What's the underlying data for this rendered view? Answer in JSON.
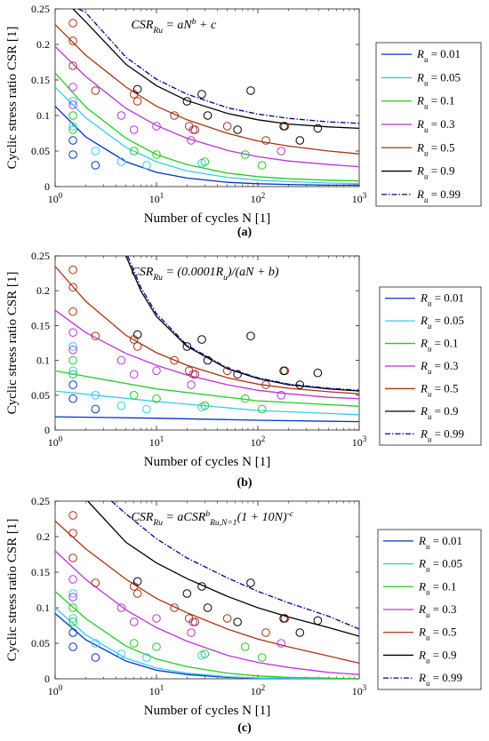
{
  "chart_data": [
    {
      "type": "line",
      "panel_label": "(a)",
      "equation": "CSR_{R_u} = aN^b + c",
      "xlabel": "Number of cycles N [1]",
      "ylabel": "Cyclic stress ratio CSR [1]",
      "xscale": "log",
      "xlim": [
        1,
        1000
      ],
      "ylim": [
        0,
        0.25
      ],
      "xticks": [
        "10^0",
        "10^1",
        "10^2",
        "10^3"
      ],
      "yticks": [
        "0",
        "0.05",
        "0.1",
        "0.15",
        "0.2",
        "0.25"
      ],
      "legend_position": "outside-right",
      "series": [
        {
          "name": "R_u = 0.01",
          "color": "#0033cc",
          "dash": "solid",
          "x": [
            1,
            2,
            5,
            10,
            20,
            50,
            100,
            200,
            500,
            1000
          ],
          "y": [
            0.113,
            0.07,
            0.035,
            0.02,
            0.012,
            0.006,
            0.004,
            0.003,
            0.002,
            0.002
          ]
        },
        {
          "name": "R_u = 0.05",
          "color": "#33ccee",
          "dash": "solid",
          "x": [
            1,
            2,
            5,
            10,
            20,
            50,
            100,
            200,
            500,
            1000
          ],
          "y": [
            0.14,
            0.097,
            0.055,
            0.035,
            0.022,
            0.013,
            0.009,
            0.007,
            0.005,
            0.004
          ]
        },
        {
          "name": "R_u = 0.1",
          "color": "#22cc22",
          "dash": "solid",
          "x": [
            1,
            2,
            5,
            10,
            20,
            50,
            100,
            200,
            500,
            1000
          ],
          "y": [
            0.16,
            0.112,
            0.068,
            0.045,
            0.031,
            0.019,
            0.014,
            0.011,
            0.009,
            0.008
          ]
        },
        {
          "name": "R_u = 0.3",
          "color": "#bb33dd",
          "dash": "solid",
          "x": [
            1,
            2,
            5,
            10,
            20,
            50,
            100,
            200,
            500,
            1000
          ],
          "y": [
            0.197,
            0.155,
            0.11,
            0.086,
            0.068,
            0.051,
            0.042,
            0.036,
            0.031,
            0.028
          ]
        },
        {
          "name": "R_u = 0.5",
          "color": "#aa3311",
          "dash": "solid",
          "x": [
            1,
            2,
            5,
            10,
            20,
            50,
            100,
            200,
            500,
            1000
          ],
          "y": [
            0.228,
            0.185,
            0.14,
            0.113,
            0.094,
            0.075,
            0.064,
            0.057,
            0.05,
            0.046
          ]
        },
        {
          "name": "R_u = 0.9",
          "color": "#000000",
          "dash": "solid",
          "x": [
            1.5,
            2,
            5,
            10,
            20,
            50,
            100,
            200,
            500,
            1000
          ],
          "y": [
            0.25,
            0.232,
            0.172,
            0.142,
            0.121,
            0.103,
            0.094,
            0.088,
            0.084,
            0.082
          ]
        },
        {
          "name": "R_u = 0.99",
          "color": "#000099",
          "dash": "dashdot",
          "x": [
            1.7,
            2,
            5,
            10,
            20,
            50,
            100,
            200,
            500,
            1000
          ],
          "y": [
            0.25,
            0.245,
            0.182,
            0.151,
            0.13,
            0.111,
            0.102,
            0.096,
            0.091,
            0.089
          ]
        }
      ],
      "points": [
        {
          "color": "#0033cc",
          "x": [
            1.5,
            1.5,
            2.5
          ],
          "y": [
            0.045,
            0.065,
            0.03
          ]
        },
        {
          "color": "#33ccee",
          "x": [
            1.5,
            1.5,
            2.5,
            4.5,
            8,
            28
          ],
          "y": [
            0.12,
            0.085,
            0.05,
            0.035,
            0.03,
            0.033
          ]
        },
        {
          "color": "#22cc22",
          "x": [
            1.5,
            1.5,
            6,
            10,
            30,
            75,
            110
          ],
          "y": [
            0.1,
            0.08,
            0.05,
            0.045,
            0.035,
            0.045,
            0.03
          ]
        },
        {
          "color": "#bb33dd",
          "x": [
            1.5,
            1.5,
            4.5,
            6,
            10,
            22,
            23,
            170
          ],
          "y": [
            0.14,
            0.115,
            0.1,
            0.08,
            0.085,
            0.065,
            0.08,
            0.05
          ]
        },
        {
          "color": "#aa3311",
          "x": [
            1.5,
            1.5,
            1.5,
            2.5,
            6,
            6.5,
            15,
            21,
            24,
            50,
            120,
            185
          ],
          "y": [
            0.23,
            0.205,
            0.17,
            0.135,
            0.13,
            0.12,
            0.1,
            0.085,
            0.08,
            0.085,
            0.065,
            0.085
          ]
        },
        {
          "color": "#000000",
          "x": [
            6.5,
            20,
            28,
            32,
            63,
            85,
            180,
            260,
            390
          ],
          "y": [
            0.137,
            0.12,
            0.13,
            0.1,
            0.08,
            0.135,
            0.085,
            0.065,
            0.082
          ]
        }
      ]
    },
    {
      "type": "line",
      "panel_label": "(b)",
      "equation": "CSR_{R_u} = (0.0001R_u)/(aN + b)",
      "xlabel": "Number of cycles N [1]",
      "ylabel": "Cyclic stress ratio CSR [1]",
      "xscale": "log",
      "xlim": [
        1,
        1000
      ],
      "ylim": [
        0,
        0.25
      ],
      "xticks": [
        "10^0",
        "10^1",
        "10^2",
        "10^3"
      ],
      "yticks": [
        "0",
        "0.05",
        "0.1",
        "0.15",
        "0.2",
        "0.25"
      ],
      "legend_position": "outside-right",
      "series": [
        {
          "name": "R_u = 0.01",
          "color": "#0033cc",
          "dash": "solid",
          "x": [
            1,
            10,
            100,
            1000
          ],
          "y": [
            0.019,
            0.017,
            0.014,
            0.012
          ]
        },
        {
          "name": "R_u = 0.05",
          "color": "#33ccee",
          "dash": "solid",
          "x": [
            1,
            10,
            100,
            1000
          ],
          "y": [
            0.056,
            0.041,
            0.028,
            0.022
          ]
        },
        {
          "name": "R_u = 0.1",
          "color": "#22cc22",
          "dash": "solid",
          "x": [
            1,
            10,
            100,
            1000
          ],
          "y": [
            0.085,
            0.059,
            0.042,
            0.034
          ]
        },
        {
          "name": "R_u = 0.3",
          "color": "#bb33dd",
          "dash": "solid",
          "x": [
            1,
            2,
            5,
            10,
            20,
            50,
            100,
            200,
            500,
            1000
          ],
          "y": [
            0.172,
            0.14,
            0.11,
            0.093,
            0.079,
            0.065,
            0.057,
            0.052,
            0.047,
            0.045
          ]
        },
        {
          "name": "R_u = 0.5",
          "color": "#aa3311",
          "dash": "solid",
          "x": [
            1,
            2,
            5,
            10,
            20,
            50,
            100,
            200,
            500,
            1000
          ],
          "y": [
            0.235,
            0.185,
            0.136,
            0.111,
            0.093,
            0.075,
            0.066,
            0.06,
            0.055,
            0.052
          ]
        },
        {
          "name": "R_u = 0.9",
          "color": "#000000",
          "dash": "solid",
          "x": [
            5,
            7,
            10,
            20,
            50,
            100,
            200,
            500,
            1000
          ],
          "y": [
            0.25,
            0.2,
            0.163,
            0.12,
            0.088,
            0.074,
            0.065,
            0.059,
            0.056
          ]
        },
        {
          "name": "R_u = 0.99",
          "color": "#000099",
          "dash": "dashdot",
          "x": [
            5.2,
            7,
            10,
            20,
            50,
            100,
            200,
            500,
            1000
          ],
          "y": [
            0.25,
            0.205,
            0.167,
            0.122,
            0.089,
            0.075,
            0.066,
            0.06,
            0.057
          ]
        }
      ],
      "points": [
        {
          "color": "#0033cc",
          "x": [
            1.5,
            1.5,
            2.5
          ],
          "y": [
            0.045,
            0.065,
            0.03
          ]
        },
        {
          "color": "#33ccee",
          "x": [
            1.5,
            1.5,
            2.5,
            4.5,
            8,
            28
          ],
          "y": [
            0.12,
            0.085,
            0.05,
            0.035,
            0.03,
            0.033
          ]
        },
        {
          "color": "#22cc22",
          "x": [
            1.5,
            1.5,
            6,
            10,
            30,
            75,
            110
          ],
          "y": [
            0.1,
            0.08,
            0.05,
            0.045,
            0.035,
            0.045,
            0.03
          ]
        },
        {
          "color": "#bb33dd",
          "x": [
            1.5,
            1.5,
            4.5,
            6,
            10,
            22,
            23,
            170
          ],
          "y": [
            0.14,
            0.115,
            0.1,
            0.08,
            0.085,
            0.065,
            0.08,
            0.05
          ]
        },
        {
          "color": "#aa3311",
          "x": [
            1.5,
            1.5,
            1.5,
            2.5,
            6,
            6.5,
            15,
            21,
            24,
            50,
            120,
            185
          ],
          "y": [
            0.23,
            0.205,
            0.17,
            0.135,
            0.13,
            0.12,
            0.1,
            0.085,
            0.08,
            0.085,
            0.065,
            0.085
          ]
        },
        {
          "color": "#000000",
          "x": [
            6.5,
            20,
            28,
            32,
            63,
            85,
            180,
            260,
            390
          ],
          "y": [
            0.137,
            0.12,
            0.13,
            0.1,
            0.08,
            0.135,
            0.085,
            0.065,
            0.082
          ]
        }
      ]
    },
    {
      "type": "line",
      "panel_label": "(c)",
      "equation": "CSR_{R_u} = aCSR^b_{R_u,N=1}(1 + 10N)^{-c}",
      "xlabel": "Number of cycles N [1]",
      "ylabel": "Cyclic stress ratio CSR [1]",
      "xscale": "log",
      "xlim": [
        1,
        1000
      ],
      "ylim": [
        0,
        0.25
      ],
      "xticks": [
        "10^0",
        "10^1",
        "10^2",
        "10^3"
      ],
      "yticks": [
        "0",
        "0.05",
        "0.1",
        "0.15",
        "0.2",
        "0.25"
      ],
      "legend_position": "outside-right",
      "series": [
        {
          "name": "R_u = 0.01",
          "color": "#0033cc",
          "dash": "solid",
          "x": [
            1,
            2,
            5,
            10,
            20,
            50,
            100,
            200,
            500,
            1000
          ],
          "y": [
            0.092,
            0.055,
            0.025,
            0.012,
            0.006,
            0.002,
            0.001,
            0,
            0,
            0
          ]
        },
        {
          "name": "R_u = 0.05",
          "color": "#33ccee",
          "dash": "solid",
          "x": [
            1,
            2,
            5,
            10,
            20,
            50,
            100,
            200,
            500,
            1000
          ],
          "y": [
            0.1,
            0.062,
            0.029,
            0.015,
            0.008,
            0.003,
            0.001,
            0.001,
            0,
            0
          ]
        },
        {
          "name": "R_u = 0.1",
          "color": "#22cc22",
          "dash": "solid",
          "x": [
            1,
            2,
            5,
            10,
            20,
            50,
            100,
            200,
            500,
            1000
          ],
          "y": [
            0.123,
            0.085,
            0.046,
            0.028,
            0.017,
            0.008,
            0.004,
            0.002,
            0.001,
            0
          ]
        },
        {
          "name": "R_u = 0.3",
          "color": "#bb33dd",
          "dash": "solid",
          "x": [
            1,
            2,
            5,
            10,
            20,
            50,
            100,
            200,
            500,
            1000
          ],
          "y": [
            0.18,
            0.14,
            0.097,
            0.072,
            0.053,
            0.033,
            0.023,
            0.016,
            0.009,
            0.006
          ]
        },
        {
          "name": "R_u = 0.5",
          "color": "#aa3311",
          "dash": "solid",
          "x": [
            1,
            2,
            5,
            10,
            20,
            50,
            100,
            200,
            500,
            1000
          ],
          "y": [
            0.222,
            0.183,
            0.14,
            0.113,
            0.093,
            0.07,
            0.056,
            0.045,
            0.032,
            0.022
          ]
        },
        {
          "name": "R_u = 0.9",
          "color": "#000000",
          "dash": "solid",
          "x": [
            2.1,
            5,
            10,
            20,
            50,
            100,
            200,
            500,
            1000
          ],
          "y": [
            0.25,
            0.192,
            0.163,
            0.141,
            0.116,
            0.1,
            0.087,
            0.072,
            0.06
          ]
        },
        {
          "name": "R_u = 0.99",
          "color": "#000099",
          "dash": "dashdot",
          "x": [
            3.6,
            5,
            10,
            20,
            50,
            100,
            200,
            500,
            1000
          ],
          "y": [
            0.25,
            0.232,
            0.197,
            0.17,
            0.142,
            0.123,
            0.107,
            0.088,
            0.07
          ]
        }
      ],
      "points": [
        {
          "color": "#0033cc",
          "x": [
            1.5,
            1.5,
            2.5
          ],
          "y": [
            0.045,
            0.065,
            0.03
          ]
        },
        {
          "color": "#33ccee",
          "x": [
            1.5,
            1.5,
            2.5,
            4.5,
            8,
            28
          ],
          "y": [
            0.12,
            0.085,
            0.05,
            0.035,
            0.03,
            0.033
          ]
        },
        {
          "color": "#22cc22",
          "x": [
            1.5,
            1.5,
            6,
            10,
            30,
            75,
            110
          ],
          "y": [
            0.1,
            0.08,
            0.05,
            0.045,
            0.035,
            0.045,
            0.03
          ]
        },
        {
          "color": "#bb33dd",
          "x": [
            1.5,
            1.5,
            4.5,
            6,
            10,
            22,
            23,
            170
          ],
          "y": [
            0.14,
            0.115,
            0.1,
            0.08,
            0.085,
            0.065,
            0.08,
            0.05
          ]
        },
        {
          "color": "#aa3311",
          "x": [
            1.5,
            1.5,
            1.5,
            2.5,
            6,
            6.5,
            15,
            21,
            24,
            50,
            120,
            185
          ],
          "y": [
            0.23,
            0.205,
            0.17,
            0.135,
            0.13,
            0.12,
            0.1,
            0.085,
            0.08,
            0.085,
            0.065,
            0.085
          ]
        },
        {
          "color": "#000000",
          "x": [
            6.5,
            20,
            28,
            32,
            63,
            85,
            180,
            260,
            390
          ],
          "y": [
            0.137,
            0.12,
            0.13,
            0.1,
            0.08,
            0.135,
            0.085,
            0.065,
            0.082
          ]
        }
      ]
    }
  ]
}
